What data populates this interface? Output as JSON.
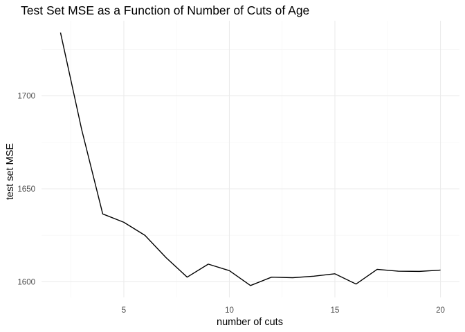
{
  "chart_data": {
    "type": "line",
    "title": "Test Set MSE as a Function of Number of Cuts of Age",
    "xlabel": "number of cuts",
    "ylabel": "test set MSE",
    "x": [
      2,
      3,
      4,
      5,
      6,
      7,
      8,
      9,
      10,
      11,
      12,
      13,
      14,
      15,
      16,
      17,
      18,
      19,
      20
    ],
    "y": [
      1734,
      1682,
      1636.5,
      1632,
      1625,
      1613,
      1602.5,
      1609.5,
      1606,
      1598,
      1602.5,
      1602.2,
      1603,
      1604.3,
      1598.8,
      1606.7,
      1605.7,
      1605.6,
      1606.3
    ],
    "xticks": [
      5,
      10,
      15,
      20
    ],
    "xtick_labels": [
      "5",
      "10",
      "15",
      "20"
    ],
    "yticks": [
      1600,
      1650,
      1700
    ],
    "ytick_labels": [
      "1600",
      "1650",
      "1700"
    ],
    "xlim": [
      1.1,
      20.9
    ],
    "ylim": [
      1591.6,
      1740.4
    ],
    "grid": true,
    "line_color": "#000000"
  }
}
